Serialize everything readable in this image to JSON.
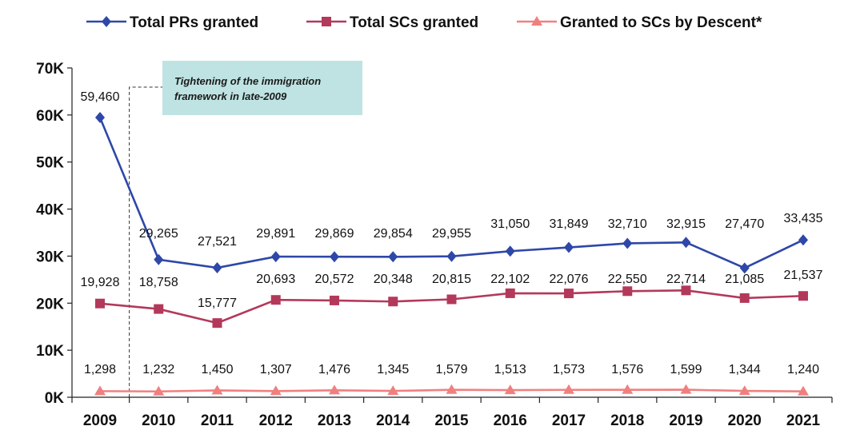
{
  "chart_data": {
    "type": "line",
    "title": "",
    "xlabel": "",
    "ylabel": "",
    "categories": [
      "2009",
      "2010",
      "2011",
      "2012",
      "2013",
      "2014",
      "2015",
      "2016",
      "2017",
      "2018",
      "2019",
      "2020",
      "2021"
    ],
    "ylim": [
      0,
      70000
    ],
    "y_ticks": [
      0,
      10000,
      20000,
      30000,
      40000,
      50000,
      60000,
      70000
    ],
    "y_tick_labels": [
      "0K",
      "10K",
      "20K",
      "30K",
      "40K",
      "50K",
      "60K",
      "70K"
    ],
    "grid": false,
    "legend_position": "top",
    "series": [
      {
        "name": "Total PRs granted",
        "color": "#2e47a8",
        "marker": "diamond",
        "values": [
          59460,
          29265,
          27521,
          29891,
          29869,
          29854,
          29955,
          31050,
          31849,
          32710,
          32915,
          27470,
          33435
        ],
        "labels": [
          "59,460",
          "29,265",
          "27,521",
          "29,891",
          "29,869",
          "29,854",
          "29,955",
          "31,050",
          "31,849",
          "32,710",
          "32,915",
          "27,470",
          "33,435"
        ]
      },
      {
        "name": "Total SCs granted",
        "color": "#b3395a",
        "marker": "square",
        "values": [
          19928,
          18758,
          15777,
          20693,
          20572,
          20348,
          20815,
          22102,
          22076,
          22550,
          22714,
          21085,
          21537
        ],
        "labels": [
          "19,928",
          "18,758",
          "15,777",
          "20,693",
          "20,572",
          "20,348",
          "20,815",
          "22,102",
          "22,076",
          "22,550",
          "22,714",
          "21,085",
          "21,537"
        ]
      },
      {
        "name": "Granted to SCs by Descent*",
        "color": "#f08080",
        "marker": "triangle",
        "values": [
          1298,
          1232,
          1450,
          1307,
          1476,
          1345,
          1579,
          1513,
          1573,
          1576,
          1599,
          1344,
          1240
        ],
        "labels": [
          "1,298",
          "1,232",
          "1,450",
          "1,307",
          "1,476",
          "1,345",
          "1,579",
          "1,513",
          "1,573",
          "1,576",
          "1,599",
          "1,344",
          "1,240"
        ]
      }
    ],
    "annotation": {
      "text_lines": [
        "Tightening of the immigration",
        "framework in late-2009"
      ],
      "box_color": "#bfe3e3"
    }
  }
}
